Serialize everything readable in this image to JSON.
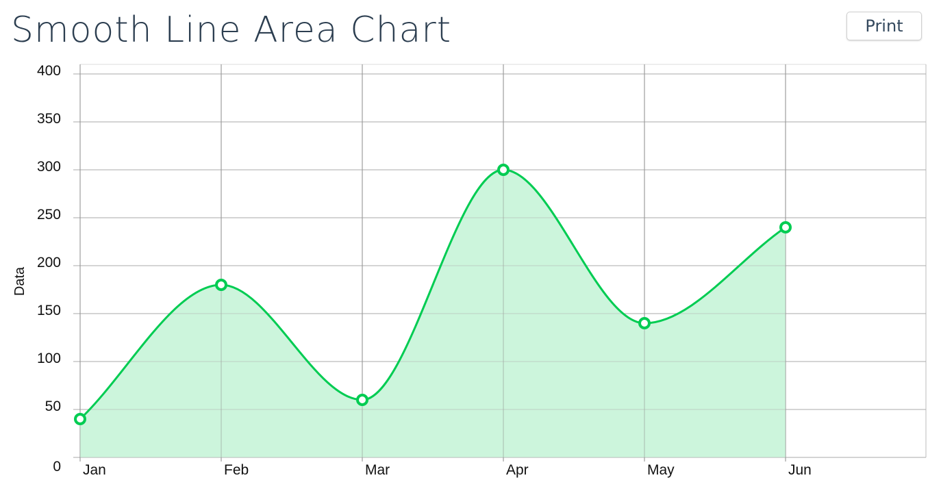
{
  "header": {
    "title": "Smooth Line Area Chart",
    "print_label": "Print"
  },
  "chart_data": {
    "type": "area",
    "smooth": true,
    "categories": [
      "Jan",
      "Feb",
      "Mar",
      "Apr",
      "May",
      "Jun"
    ],
    "values": [
      40,
      180,
      60,
      300,
      140,
      240
    ],
    "ylabel": "Data",
    "ylim": [
      0,
      400
    ],
    "yticks": [
      0,
      50,
      100,
      150,
      200,
      250,
      300,
      350,
      400
    ],
    "grid": true,
    "line_color": "#00cc52",
    "fill_color": "#ccf5dc"
  }
}
